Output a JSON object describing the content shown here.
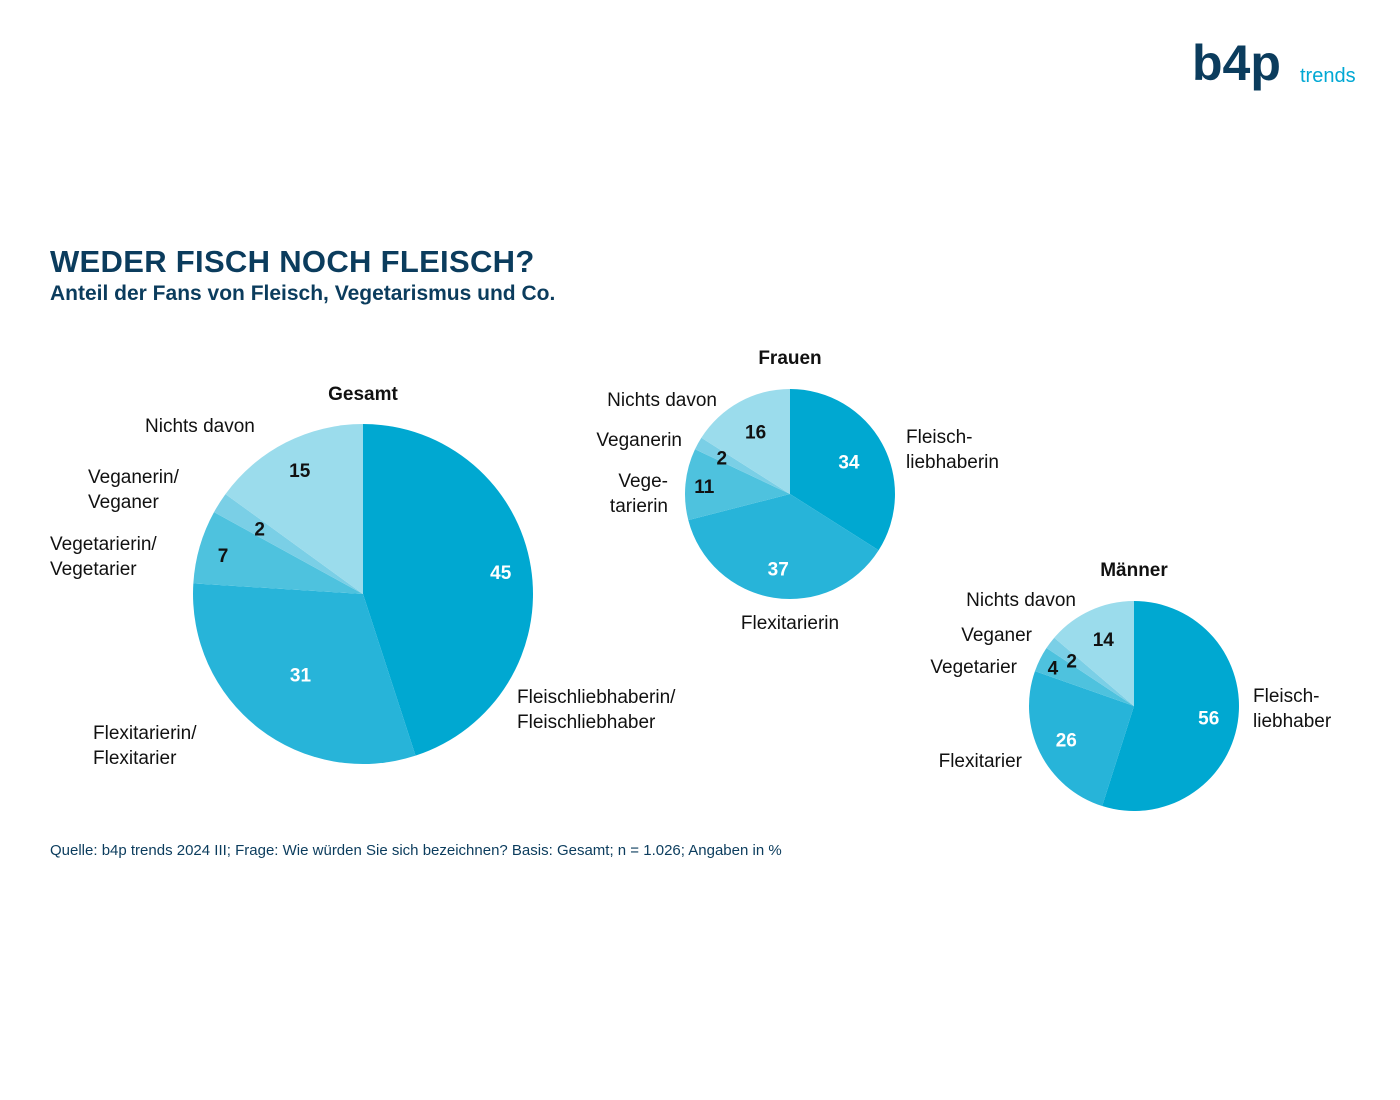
{
  "brand": {
    "logo_text": "b4p",
    "logo_suffix": "trends",
    "colors": {
      "dark": "#0b3c5d",
      "accent": "#00a8d4"
    }
  },
  "header": {
    "title": "WEDER FISCH NOCH FLEISCH?",
    "subtitle": "Anteil der Fans von Fleisch, Vegetarismus und Co."
  },
  "source": "Quelle: b4p trends 2024 III; Frage: Wie würden Sie sich bezeichnen? Basis: Gesamt; n = 1.026; Angaben in %",
  "chart_data": [
    {
      "type": "pie",
      "title": "Gesamt",
      "labels": [
        [
          "Fleischliebhaberin/",
          "Fleischliebhaber"
        ],
        [
          "Flexitarierin/",
          "Flexitarier"
        ],
        [
          "Vegetarierin/",
          "Vegetarier"
        ],
        [
          "Veganerin/",
          "Veganer"
        ],
        [
          "Nichts davon"
        ]
      ],
      "values": [
        45,
        31,
        7,
        2,
        15
      ],
      "colors": [
        "#00a8d1",
        "#27b4d9",
        "#4ec2de",
        "#7acfe6",
        "#9bdcec"
      ]
    },
    {
      "type": "pie",
      "title": "Frauen",
      "labels": [
        [
          "Fleisch-",
          "liebhaberin"
        ],
        [
          "Flexitarierin"
        ],
        [
          "Vege-",
          "tarierin"
        ],
        [
          "Veganerin"
        ],
        [
          "Nichts davon"
        ]
      ],
      "values": [
        34,
        37,
        11,
        2,
        16
      ],
      "colors": [
        "#00a8d1",
        "#27b4d9",
        "#4ec2de",
        "#7acfe6",
        "#9bdcec"
      ]
    },
    {
      "type": "pie",
      "title": "Männer",
      "labels": [
        [
          "Fleisch-",
          "liebhaber"
        ],
        [
          "Flexitarier"
        ],
        [
          "Vegetarier"
        ],
        [
          "Veganer"
        ],
        [
          "Nichts davon"
        ]
      ],
      "values": [
        56,
        26,
        4,
        2,
        14
      ],
      "colors": [
        "#00a8d1",
        "#27b4d9",
        "#4ec2de",
        "#7acfe6",
        "#9bdcec"
      ]
    }
  ]
}
